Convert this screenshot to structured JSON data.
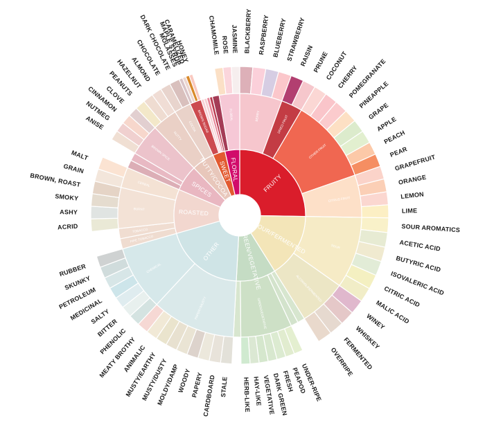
{
  "wheel": {
    "inner": [
      {
        "label": "FRUITY",
        "color": "#da1d2b",
        "start": 0,
        "end": 91,
        "mid": [
          {
            "label": "BERRY",
            "color": "#f6c6cd",
            "outer": [
              [
                "BLACKBERRY",
                "#ddb0b8"
              ],
              [
                "RASPBERRY",
                "#fbd0da"
              ],
              [
                "BLUEBERRY",
                "#d6cde3"
              ],
              [
                "STRAWBERRY",
                "#fbc7cb"
              ]
            ]
          },
          {
            "label": "DRIED FRUIT",
            "color": "#c33c44",
            "outer": [
              [
                "RAISIN",
                "#b23f70"
              ],
              [
                "PRUNE",
                "#f6c7cc"
              ]
            ]
          },
          {
            "label": "OTHER FRUIT",
            "color": "#f06751",
            "outer": [
              [
                "COCONUT",
                "#fbd7d4"
              ],
              [
                "CHERRY",
                "#fac5ca"
              ],
              [
                "POMEGRANATE",
                "#fbcbcd"
              ],
              [
                "PINEAPPLE",
                "#fde0c4"
              ],
              [
                "GRAPE",
                "#dcebcc"
              ],
              [
                "APPLE",
                "#e2efcf"
              ],
              [
                "PEACH",
                "#fcc9a8"
              ],
              [
                "PEAR",
                "#f58e62"
              ]
            ]
          },
          {
            "label": "CITRUS FRUIT",
            "color": "#fde0c8",
            "outer": [
              [
                "GRAPEFRUIT",
                "#fbd3c9"
              ],
              [
                "ORANGE",
                "#fbcfb6"
              ],
              [
                "LEMON",
                "#fbd7d0"
              ],
              [
                "LIME",
                "#fcefc4"
              ]
            ]
          }
        ]
      },
      {
        "label": "SOUR/FERMENTED",
        "color": "#f3e5b8",
        "start": 91,
        "end": 148,
        "mid": [
          {
            "label": "SOUR",
            "color": "#f6ebc6",
            "outer": [
              [
                "SOUR AROMATICS",
                "#f9f1c9"
              ],
              [
                "ACETIC ACID",
                "#e7ebd3"
              ],
              [
                "BUTYRIC ACID",
                "#f0ead0"
              ],
              [
                "ISOVALERIC ACID",
                "#e2ecd7"
              ],
              [
                "CITRIC ACID",
                "#f4f0c1"
              ],
              [
                "MALIC ACID",
                "#f1edc7"
              ]
            ]
          },
          {
            "label": "ALCOHOL/FERMENTED",
            "color": "#ece6c5",
            "outer": [
              [
                "WINEY",
                "#e0b8cd"
              ],
              [
                "WHISKEY",
                "#e5c8c8"
              ],
              [
                "FERMENTED",
                "#e6d9cf"
              ],
              [
                "OVERRIPE",
                "#e9d9cc"
              ]
            ]
          }
        ]
      },
      {
        "label": "GREEN/VEGETATIVE",
        "color": "#c5dcc4",
        "start": 148,
        "end": 183,
        "mid": [
          {
            "label": "OLIVE OIL",
            "color": "#d7e6cf",
            "outer": []
          },
          {
            "label": "RAW",
            "color": "#d3e3cc",
            "outer": []
          },
          {
            "label": "GREEN/VEGETATIVE",
            "color": "#cde0c6",
            "outer": [
              [
                "UNDER-RIPE",
                "#e4efd0"
              ],
              [
                "PEAPOD",
                "#e1eccf"
              ],
              [
                "FRESH",
                "#dcebd1"
              ],
              [
                "DARK GREEN",
                "#d8e8cf"
              ],
              [
                "VEGETATIVE",
                "#d5e7cd"
              ],
              [
                "HAY-LIKE",
                "#dbe8d3"
              ],
              [
                "HERB-LIKE",
                "#d0ead0"
              ]
            ]
          },
          {
            "label": "BEANY",
            "color": "#d8e6cf",
            "outer": []
          }
        ]
      },
      {
        "label": "OTHER",
        "color": "#cfe4e6",
        "start": 183,
        "end": 254,
        "mid": [
          {
            "label": "PAPERY/MUSTY",
            "color": "#dae9ea",
            "outer": [
              [
                "STALE",
                "#e3e1d9"
              ],
              [
                "CARDBOARD",
                "#e8e3da"
              ],
              [
                "PAPERY",
                "#ece8dc"
              ],
              [
                "WOODY",
                "#ddd3cc"
              ],
              [
                "MOLDY/DAMP",
                "#eae4d4"
              ],
              [
                "MUSTY/DUSTY",
                "#e8e1d0"
              ],
              [
                "MUSTY/EARTHY",
                "#eae4cd"
              ],
              [
                "ANIMALIC",
                "#f1e9d6"
              ],
              [
                "MEATY BROTHY",
                "#f6d8d4"
              ]
            ]
          },
          {
            "label": "CHEMICAL",
            "color": "#d6e8ea",
            "outer": [
              [
                "PHENOLIC",
                "#d4e3e1"
              ],
              [
                "BITTER",
                "#e8f0ee"
              ],
              [
                "SALTY",
                "#dfecef"
              ],
              [
                "MEDICINAL",
                "#cde5ea"
              ],
              [
                "PETROLEUM",
                "#d7e6e7"
              ],
              [
                "SKUNKY",
                "#d0dcdc"
              ],
              [
                "RUBBER",
                "#cfd2d2"
              ]
            ]
          }
        ]
      },
      {
        "label": "ROASTED",
        "color": "#f2d7cf",
        "start": 254,
        "end": 293,
        "mid": [
          {
            "label": "PIPE TOBACCO",
            "color": "#efdcd0",
            "outer": []
          },
          {
            "label": "TOBACCO",
            "color": "#f0ddd1",
            "outer": []
          },
          {
            "label": "BURNT",
            "color": "#f3e2d6",
            "outer": [
              [
                "ACRID",
                "#eae9d6"
              ],
              [
                "ASHY",
                "#e0e4e2"
              ],
              [
                "SMOKY",
                "#e5dccf"
              ],
              [
                "BROWN, ROAST",
                "#e5d4c6"
              ]
            ]
          },
          {
            "label": "CEREAL",
            "color": "#f4e2d4",
            "outer": [
              [
                "GRAIN",
                "#f3e6db"
              ],
              [
                "MALT",
                "#fbe3d2"
              ]
            ]
          }
        ]
      },
      {
        "label": "SPICES",
        "color": "#e9b7c1",
        "start": 293,
        "end": 316,
        "mid": [
          {
            "label": "PUNGENT",
            "color": "#dcaeb6",
            "outer": []
          },
          {
            "label": "PEPPER",
            "color": "#e8b9c3",
            "outer": []
          },
          {
            "label": "BROWN SPICE",
            "color": "#ecc3cb",
            "outer": [
              [
                "ANISE",
                "#f0dfd3"
              ],
              [
                "NUTMEG",
                "#f0d0cf"
              ],
              [
                "CINNAMON",
                "#f7d7cc"
              ],
              [
                "CLOVE",
                "#e2cfd0"
              ]
            ]
          }
        ]
      },
      {
        "label": "NUTTY/COCOA",
        "color": "#e8c7bb",
        "start": 316,
        "end": 336,
        "mid": [
          {
            "label": "NUTTY",
            "color": "#ead0c6",
            "outer": [
              [
                "PEANUTS",
                "#f3e8c9"
              ],
              [
                "HAZELNUT",
                "#efdcd1"
              ],
              [
                "ALMOND",
                "#f0ddd5"
              ]
            ]
          },
          {
            "label": "COCOA",
            "color": "#e9d2c9",
            "outer": [
              [
                "CHOCOLATE",
                "#e8d4cd"
              ],
              [
                "DARK CHOCOLATE",
                "#d9c0bd"
              ]
            ]
          }
        ]
      },
      {
        "label": "SWEET",
        "color": "#e25a30",
        "start": 336,
        "end": 347,
        "mid": [
          {
            "label": "BROWN SUGAR",
            "color": "#cc4a4f",
            "outer": [
              [
                "MOLASSES",
                "#d9c4c7"
              ],
              [
                "MAPLE SYRUP",
                "#ecd6d0"
              ],
              [
                "CARAMELIZED",
                "#d98a2b"
              ],
              [
                "HONEY",
                "#fac9c0"
              ]
            ]
          },
          {
            "label": "VANILLA",
            "color": "#f8d0d4",
            "outer": []
          },
          {
            "label": "VANILLIN",
            "color": "#f5cfd3",
            "outer": []
          },
          {
            "label": "OVERALL SWEET",
            "color": "#e78497",
            "outer": []
          },
          {
            "label": "SWEET AROMATICS",
            "color": "#b83a4f",
            "outer": []
          }
        ]
      },
      {
        "label": "FLORAL",
        "color": "#d10b6a",
        "start": 347,
        "end": 360,
        "mid": [
          {
            "label": "BLACK TEA",
            "color": "#a43c56",
            "outer": []
          },
          {
            "label": "FLORAL",
            "color": "#f6c8d6",
            "outer": [
              [
                "CHAMOMILE",
                "#fbe0c6"
              ],
              [
                "ROSE",
                "#fbd6dc"
              ],
              [
                "JASMINE",
                "#f6eeee"
              ]
            ]
          }
        ]
      }
    ]
  }
}
